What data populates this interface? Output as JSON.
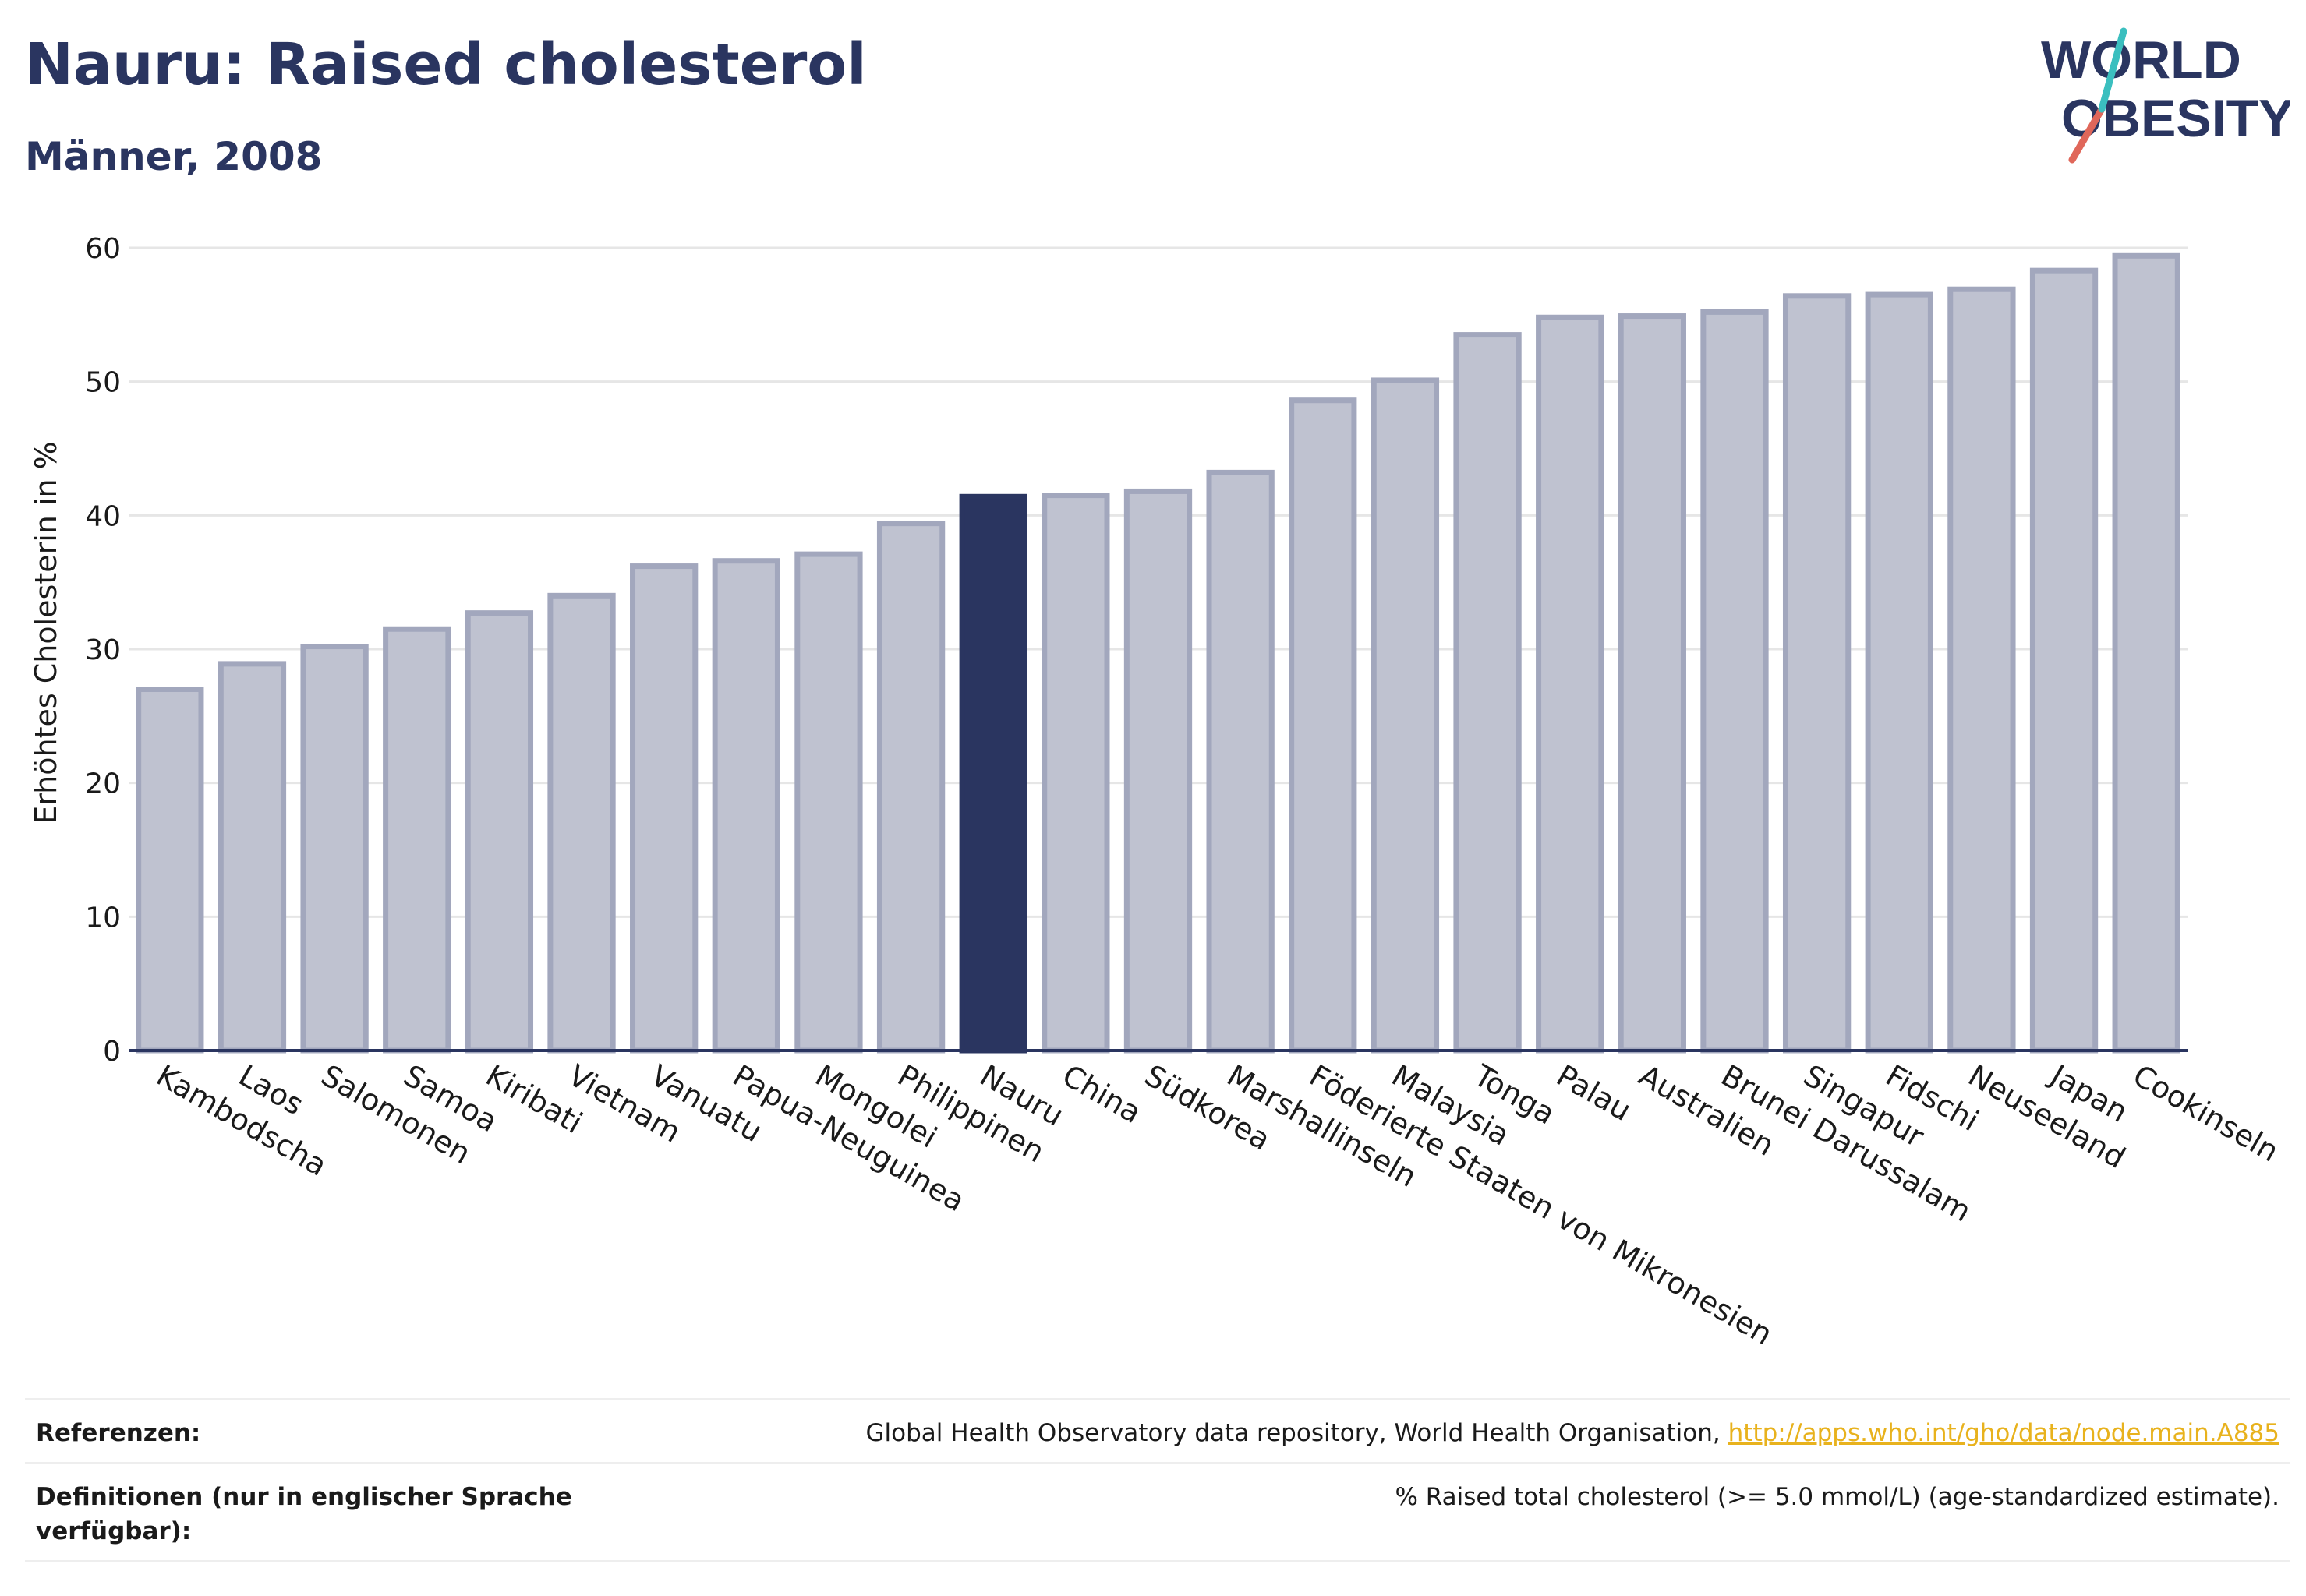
{
  "header": {
    "title": "Nauru: Raised cholesterol",
    "subtitle": "Männer, 2008"
  },
  "logo": {
    "line1": "WORLD",
    "line2": "OBESITY",
    "colors": {
      "text": "#2a3560",
      "slash_red": "#e0675a",
      "slash_teal": "#3bbfbf"
    }
  },
  "colors": {
    "bar_fill": "#bfc2d0",
    "bar_stroke": "#a2a7bd",
    "highlight": "#2a3560",
    "grid": "#e6e6e6"
  },
  "chart_data": {
    "type": "bar",
    "ylabel": "Erhöhtes Cholesterin in %",
    "xlabel": "",
    "ylim": [
      0,
      60
    ],
    "yticks": [
      0,
      10,
      20,
      30,
      40,
      50,
      60
    ],
    "grid": true,
    "highlight_category": "Nauru",
    "categories": [
      "Kambodscha",
      "Laos",
      "Salomonen",
      "Samoa",
      "Kiribati",
      "Vietnam",
      "Vanuatu",
      "Papua-Neuguinea",
      "Mongolei",
      "Philippinen",
      "Nauru",
      "China",
      "Südkorea",
      "Marshallinseln",
      "Föderierte Staaten von Mikronesien",
      "Malaysia",
      "Tonga",
      "Palau",
      "Australien",
      "Brunei Darussalam",
      "Singapur",
      "Fidschi",
      "Neuseeland",
      "Japan",
      "Cookinseln"
    ],
    "values": [
      27.0,
      28.9,
      30.2,
      31.5,
      32.7,
      34.0,
      36.2,
      36.6,
      37.1,
      39.4,
      41.4,
      41.5,
      41.8,
      43.2,
      48.6,
      50.1,
      53.5,
      54.8,
      54.9,
      55.2,
      56.4,
      56.5,
      56.9,
      58.3,
      59.4
    ]
  },
  "footer": {
    "references_label": "Referenzen:",
    "references_text": "Global Health Observatory data repository, World Health Organisation, ",
    "references_link": "http://apps.who.int/gho/data/node.main.A885",
    "definitions_label": "Definitionen (nur in englischer Sprache verfügbar):",
    "definitions_text": "% Raised total cholesterol (>= 5.0 mmol/L) (age-standardized estimate)."
  }
}
